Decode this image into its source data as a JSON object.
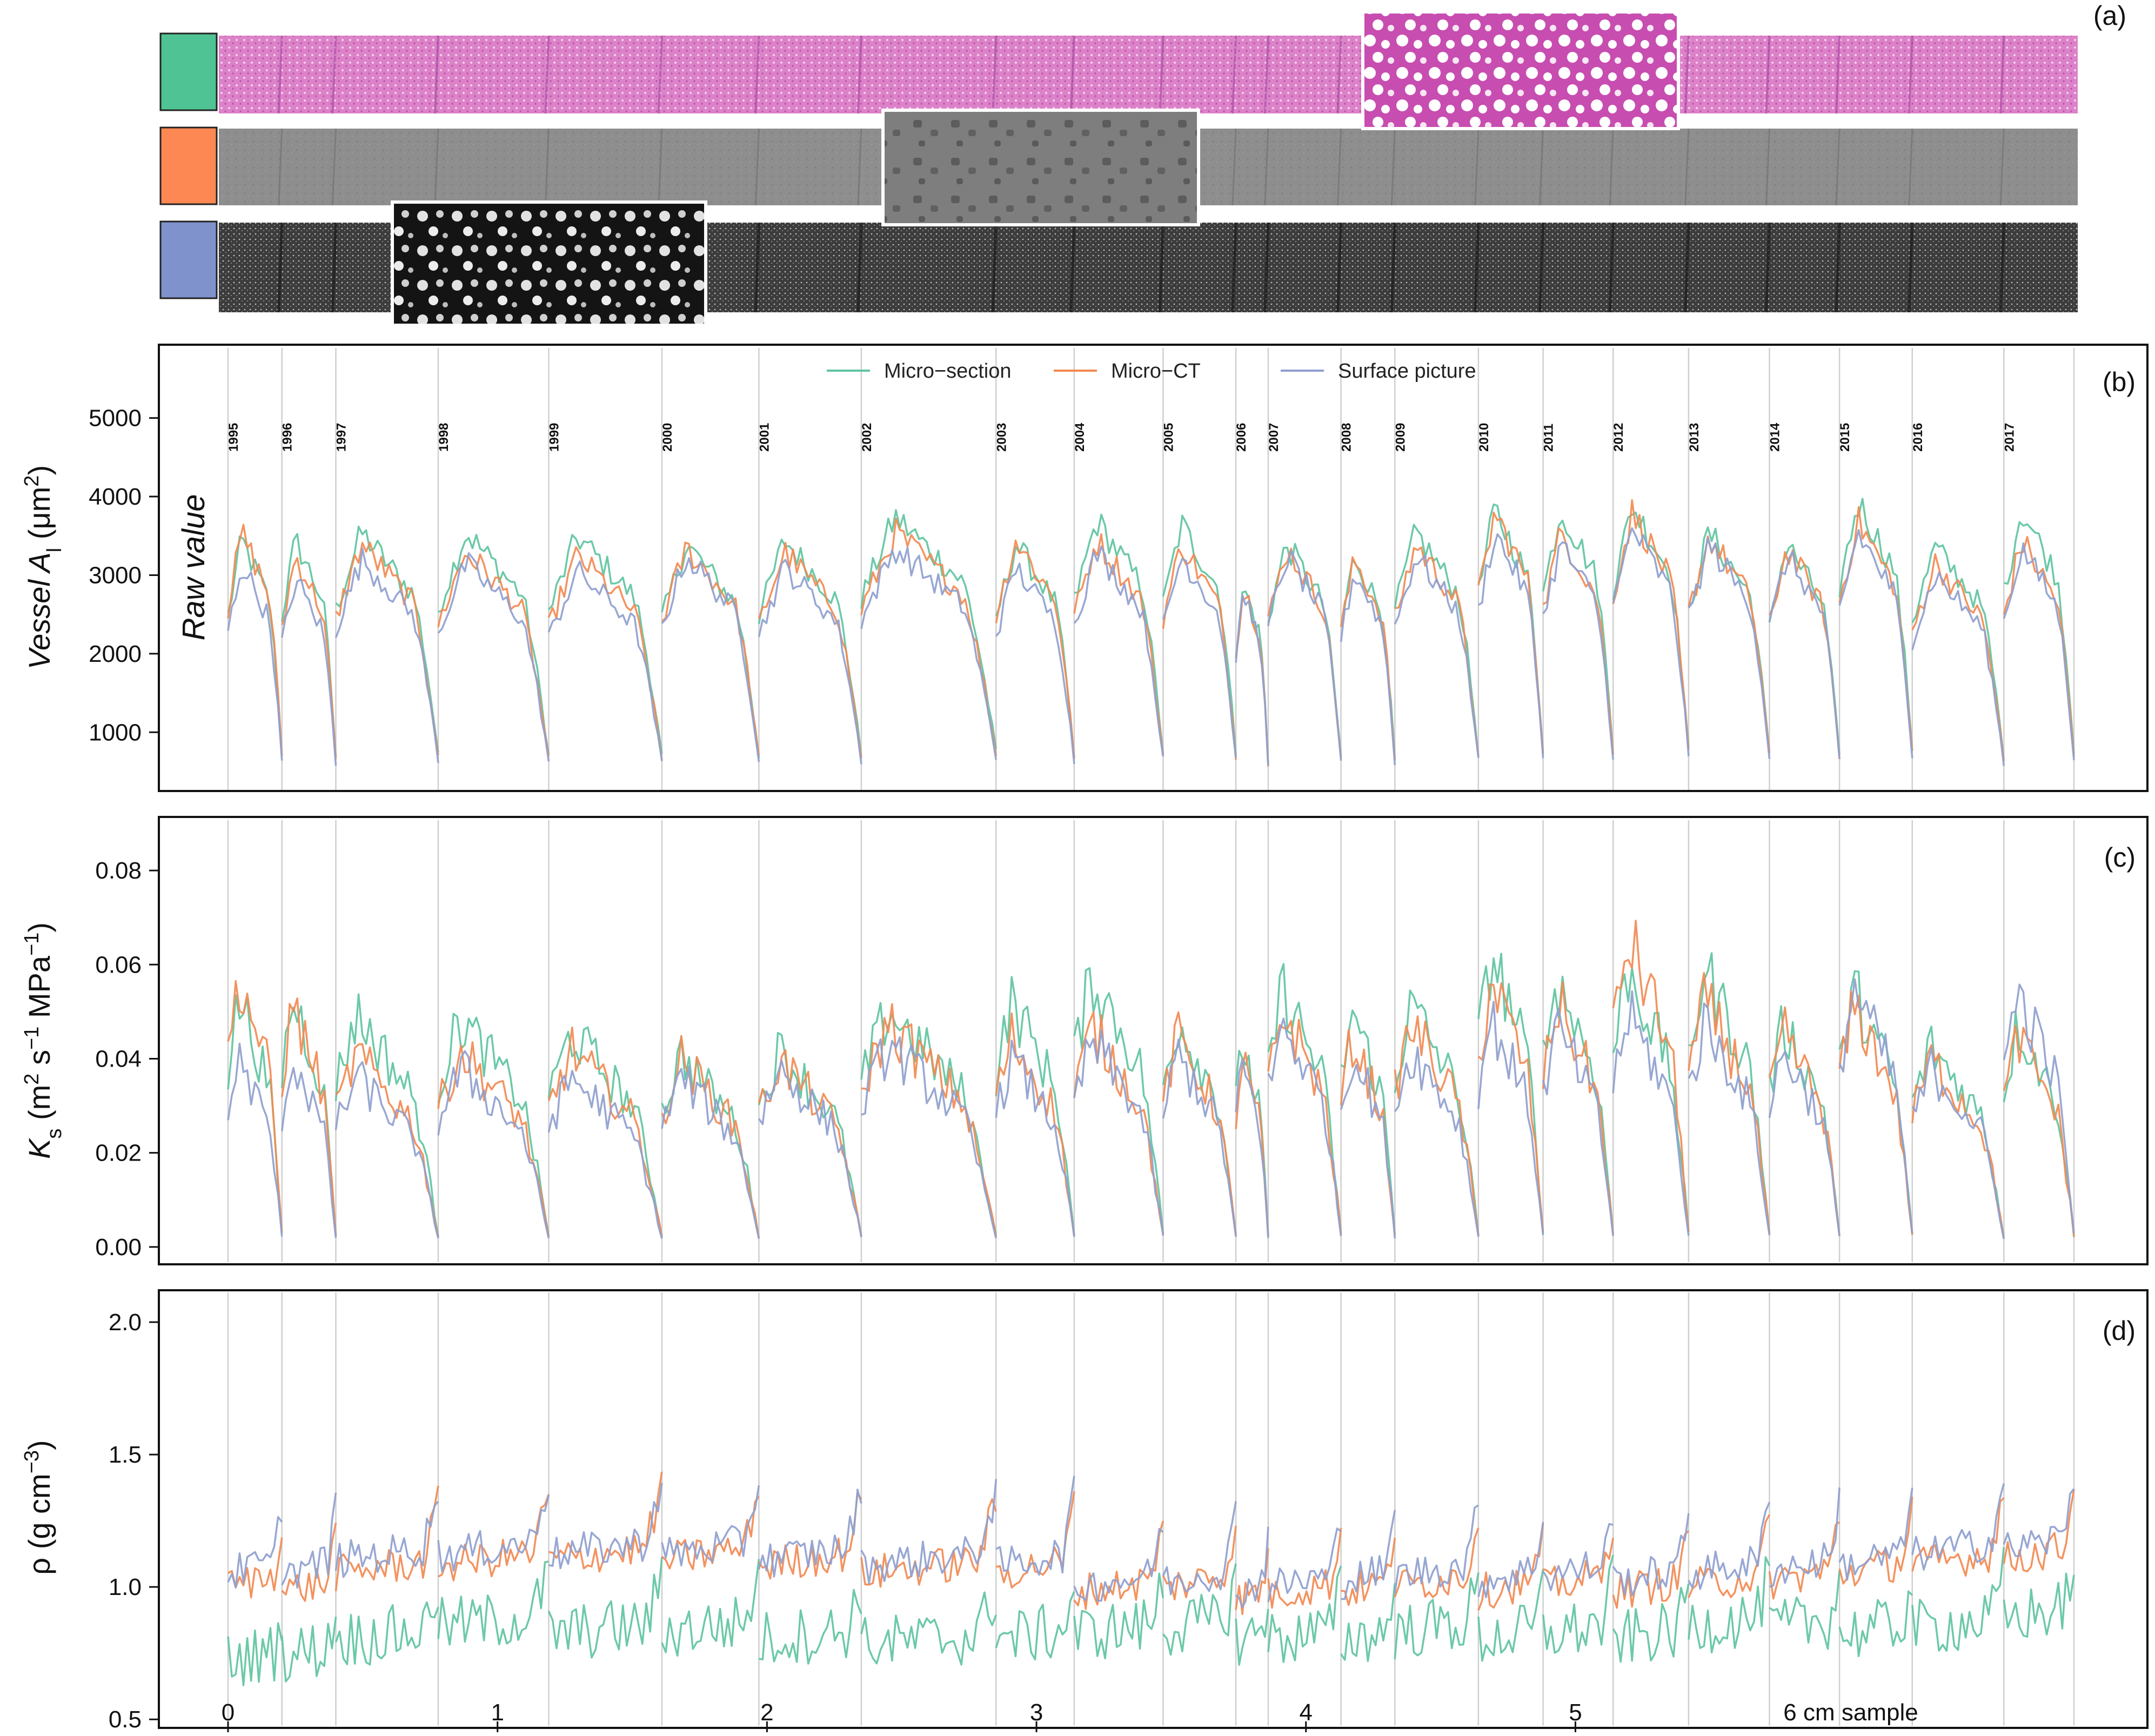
{
  "colors": {
    "micro_section": "#5fc4a0",
    "micro_ct": "#f28a52",
    "surface_picture": "#8f9fcf",
    "swatch_micro_section": "#4fc393",
    "swatch_micro_ct": "#fd8853",
    "swatch_surface_picture": "#7f92cc"
  },
  "images": {
    "panel_label": "(a)",
    "strips": [
      {
        "name": "micro-section",
        "strip_color": "#d97cc6",
        "inset_color": "#c63fae"
      },
      {
        "name": "micro-ct",
        "strip_color": "#8d8d8d",
        "inset_color": "#6e6e6e"
      },
      {
        "name": "surface-picture",
        "strip_color": "#5a5a5a",
        "inset_color": "#1b1b1b"
      }
    ]
  },
  "chart_data": [
    {
      "type": "line",
      "panel_label": "(b)",
      "ylabel": "Vessel A",
      "ylabel_sub": "l",
      "ylabel_unit_pre": " (μm",
      "ylabel_unit_sup": "2",
      "ylabel_unit_post": ")",
      "annotation": "Raw value",
      "ylim": [
        280,
        5850
      ],
      "yticks": [
        1000,
        2000,
        3000,
        4000,
        5000
      ],
      "ytick_labels": [
        "1000",
        "2000",
        "3000",
        "4000",
        "5000"
      ],
      "legend": [
        "Micro−section",
        "Micro−CT",
        "Surface picture"
      ],
      "legend_position": "top-center",
      "year_labels": [
        "1995",
        "1996",
        "1997",
        "1998",
        "1999",
        "2000",
        "2001",
        "2002",
        "2003",
        "2004",
        "2005",
        "2006",
        "2007",
        "2008",
        "2009",
        "2010",
        "2011",
        "2012",
        "2013",
        "2014",
        "2015",
        "2016",
        "2017"
      ],
      "series": [
        {
          "name": "Micro−section",
          "color": "#5fc4a0",
          "peak_values": [
            3500,
            3500,
            3600,
            3600,
            3550,
            3450,
            3500,
            3800,
            3450,
            3750,
            3700,
            2900,
            3450,
            3300,
            3600,
            3900,
            3900,
            3950,
            3600,
            3450,
            4000,
            3400,
            3900
          ]
        },
        {
          "name": "Micro−CT",
          "color": "#f28a52",
          "peak_values": [
            3600,
            3300,
            3450,
            3350,
            3300,
            3400,
            3350,
            3600,
            3500,
            3500,
            3450,
            2900,
            3400,
            3250,
            3450,
            3850,
            3600,
            3850,
            3550,
            3400,
            3750,
            3200,
            3500
          ]
        },
        {
          "name": "Surface picture",
          "color": "#8f9fcf",
          "peak_values": [
            3200,
            3000,
            3250,
            3200,
            3100,
            3300,
            3150,
            3400,
            3150,
            3350,
            3300,
            2800,
            3300,
            3100,
            3300,
            3600,
            3450,
            3650,
            3450,
            3300,
            3600,
            3050,
            3400
          ]
        }
      ]
    },
    {
      "type": "line",
      "panel_label": "(c)",
      "ylabel": "K",
      "ylabel_sub": "s",
      "ylabel_unit_pre": " (m",
      "ylabel_unit_sup": "2",
      "ylabel_unit_mid": " s",
      "ylabel_unit_sup2": "−1",
      "ylabel_unit_mid2": " MPa",
      "ylabel_unit_sup3": "−1",
      "ylabel_unit_post": ")",
      "ylim": [
        -0.003,
        0.09
      ],
      "yticks": [
        0.0,
        0.02,
        0.04,
        0.06,
        0.08
      ],
      "ytick_labels": [
        "0.00",
        "0.02",
        "0.04",
        "0.06",
        "0.08"
      ],
      "series": [
        {
          "name": "Micro−section",
          "color": "#5fc4a0",
          "peak_values": [
            0.056,
            0.056,
            0.052,
            0.051,
            0.048,
            0.043,
            0.044,
            0.053,
            0.055,
            0.061,
            0.051,
            0.046,
            0.058,
            0.053,
            0.054,
            0.066,
            0.06,
            0.062,
            0.062,
            0.05,
            0.057,
            0.045,
            0.05
          ]
        },
        {
          "name": "Micro−CT",
          "color": "#f28a52",
          "peak_values": [
            0.061,
            0.054,
            0.043,
            0.044,
            0.044,
            0.042,
            0.042,
            0.05,
            0.047,
            0.049,
            0.047,
            0.042,
            0.053,
            0.047,
            0.05,
            0.06,
            0.055,
            0.069,
            0.055,
            0.048,
            0.054,
            0.042,
            0.047
          ]
        },
        {
          "name": "Surface picture",
          "color": "#8f9fcf",
          "peak_values": [
            0.042,
            0.042,
            0.038,
            0.04,
            0.038,
            0.038,
            0.04,
            0.045,
            0.042,
            0.046,
            0.043,
            0.041,
            0.05,
            0.044,
            0.044,
            0.051,
            0.049,
            0.052,
            0.05,
            0.044,
            0.058,
            0.04,
            0.057
          ]
        }
      ]
    },
    {
      "type": "line",
      "panel_label": "(d)",
      "ylabel": "ρ (g cm",
      "ylabel_unit_sup": "−3",
      "ylabel_unit_post": ")",
      "ylim": [
        0.48,
        2.1
      ],
      "yticks": [
        0.5,
        1.0,
        1.5,
        2.0
      ],
      "ytick_labels": [
        "0.5",
        "1.0",
        "1.5",
        "2.0"
      ],
      "xlim": [
        0,
        6.85
      ],
      "xticks": [
        0,
        1,
        2,
        3,
        4,
        5
      ],
      "xtick_labels": [
        "0",
        "1",
        "2",
        "3",
        "4",
        "5"
      ],
      "xlabel": "6 cm sample",
      "series": [
        {
          "name": "Micro−section",
          "color": "#5fc4a0",
          "mean_values": [
            0.72,
            0.74,
            0.8,
            0.85,
            0.82,
            0.83,
            0.8,
            0.78,
            0.8,
            0.82,
            0.84,
            0.8,
            0.8,
            0.8,
            0.83,
            0.8,
            0.82,
            0.8,
            0.85,
            0.84,
            0.82,
            0.84,
            0.88
          ]
        },
        {
          "name": "Micro−CT",
          "color": "#f28a52",
          "mean_values": [
            1.0,
            0.98,
            1.05,
            1.08,
            1.1,
            1.1,
            1.08,
            1.05,
            1.05,
            0.98,
            1.0,
            0.95,
            0.97,
            0.98,
            1.0,
            0.98,
            1.0,
            0.98,
            1.0,
            1.02,
            1.05,
            1.08,
            1.1
          ]
        },
        {
          "name": "Surface picture",
          "color": "#8f9fcf",
          "mean_values": [
            1.05,
            1.05,
            1.1,
            1.12,
            1.12,
            1.12,
            1.1,
            1.08,
            1.08,
            1.0,
            1.02,
            0.98,
            1.0,
            1.02,
            1.04,
            1.02,
            1.04,
            1.02,
            1.05,
            1.06,
            1.08,
            1.12,
            1.14
          ]
        }
      ]
    }
  ],
  "ring_boundaries_cm": [
    0,
    0.2,
    0.4,
    0.78,
    1.19,
    1.61,
    1.97,
    2.35,
    2.85,
    3.14,
    3.47,
    3.74,
    3.86,
    4.13,
    4.33,
    4.64,
    4.88,
    5.14,
    5.42,
    5.72,
    5.98,
    6.25,
    6.59,
    6.85
  ]
}
